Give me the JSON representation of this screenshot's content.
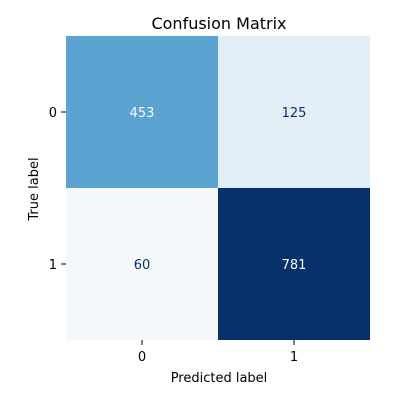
{
  "chart_data": {
    "type": "heatmap",
    "title": "Confusion Matrix",
    "xlabel": "Predicted label",
    "ylabel": "True label",
    "x_categories": [
      "0",
      "1"
    ],
    "y_categories": [
      "0",
      "1"
    ],
    "values": [
      [
        453,
        125
      ],
      [
        60,
        781
      ]
    ],
    "colormap": "Blues",
    "cell_colors": [
      [
        "#5ba3d0",
        "#e3eef8"
      ],
      [
        "#f5f9fe",
        "#08306b"
      ]
    ],
    "text_colors": [
      [
        "#f7fbff",
        "#08306b"
      ],
      [
        "#08306b",
        "#f7fbff"
      ]
    ],
    "grid": false,
    "colorbar": false
  }
}
